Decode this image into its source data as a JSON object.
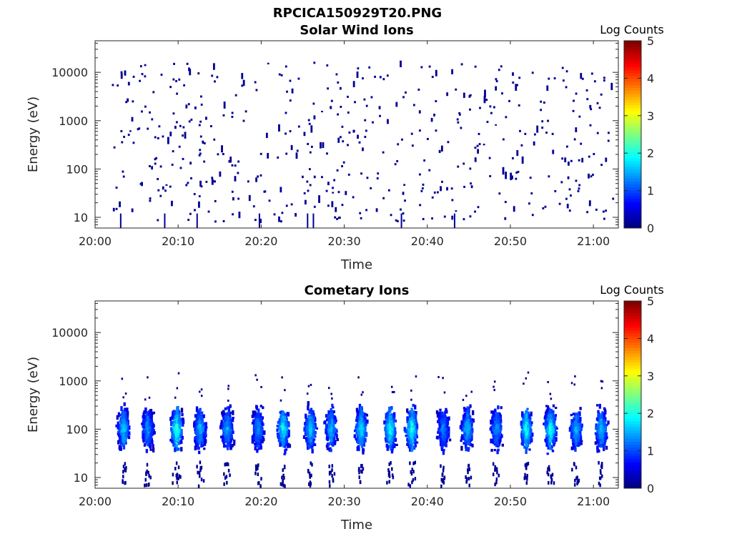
{
  "figure_title": "RPCICA150929T20.PNG",
  "chart_data": [
    {
      "type": "heatmap",
      "title": "Solar Wind Ions",
      "xlabel": "Time",
      "ylabel": "Energy (eV)",
      "x_ticks": [
        "20:00",
        "20:10",
        "20:20",
        "20:30",
        "20:40",
        "20:50",
        "21:00"
      ],
      "x_tick_minutes": [
        0,
        10,
        20,
        30,
        40,
        50,
        60
      ],
      "xlim_minutes": [
        0,
        63
      ],
      "y_ticks": [
        "10",
        "100",
        "1000",
        "10000"
      ],
      "y_tick_values": [
        10,
        100,
        1000,
        10000
      ],
      "ylim": [
        6,
        45000
      ],
      "y_scale": "log",
      "colorbar_label": "Log Counts",
      "colorbar_ticks": [
        "0",
        "1",
        "2",
        "3",
        "4",
        "5"
      ],
      "clim": [
        0,
        5
      ],
      "colormap": "jet",
      "dominant_level": 0.1,
      "description_of_data": "sparse scattered low-count detections across 10-10000 eV"
    },
    {
      "type": "heatmap",
      "title": "Cometary Ions",
      "xlabel": "Time",
      "ylabel": "Energy (eV)",
      "x_ticks": [
        "20:00",
        "20:10",
        "20:20",
        "20:30",
        "20:40",
        "20:50",
        "21:00"
      ],
      "x_tick_minutes": [
        0,
        10,
        20,
        30,
        40,
        50,
        60
      ],
      "xlim_minutes": [
        0,
        63
      ],
      "y_ticks": [
        "10",
        "100",
        "1000",
        "10000"
      ],
      "y_tick_values": [
        10,
        100,
        1000,
        10000
      ],
      "ylim": [
        6,
        45000
      ],
      "y_scale": "log",
      "colorbar_label": "Log Counts",
      "colorbar_ticks": [
        "0",
        "1",
        "2",
        "3",
        "4",
        "5"
      ],
      "clim": [
        0,
        5
      ],
      "colormap": "jet",
      "bursts": [
        {
          "minute": 3.3,
          "peak": 1.6
        },
        {
          "minute": 6.2,
          "peak": 1.3
        },
        {
          "minute": 9.7,
          "peak": 2.1
        },
        {
          "minute": 12.5,
          "peak": 1.5
        },
        {
          "minute": 15.8,
          "peak": 1.4
        },
        {
          "minute": 19.5,
          "peak": 1.3
        },
        {
          "minute": 22.5,
          "peak": 1.9
        },
        {
          "minute": 25.8,
          "peak": 1.6
        },
        {
          "minute": 28.3,
          "peak": 1.5
        },
        {
          "minute": 31.9,
          "peak": 1.7
        },
        {
          "minute": 35.4,
          "peak": 1.9
        },
        {
          "minute": 38.0,
          "peak": 2.0
        },
        {
          "minute": 41.8,
          "peak": 1.2
        },
        {
          "minute": 44.7,
          "peak": 1.5
        },
        {
          "minute": 48.2,
          "peak": 1.3
        },
        {
          "minute": 51.8,
          "peak": 1.9
        },
        {
          "minute": 54.7,
          "peak": 1.9
        },
        {
          "minute": 57.8,
          "peak": 1.5
        },
        {
          "minute": 60.8,
          "peak": 1.6
        }
      ]
    }
  ]
}
